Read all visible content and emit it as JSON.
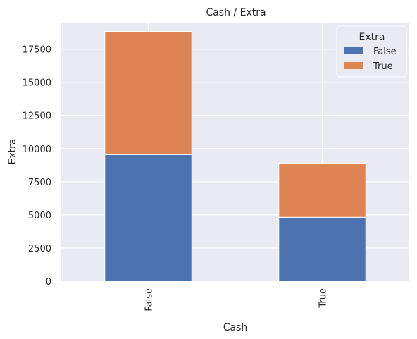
{
  "chart_data": {
    "type": "bar",
    "stacked": true,
    "title": "Cash / Extra",
    "xlabel": "Cash",
    "ylabel": "Extra",
    "categories": [
      "False",
      "True"
    ],
    "series": [
      {
        "name": "False",
        "values": [
          9550,
          4820
        ]
      },
      {
        "name": "True",
        "values": [
          9280,
          4070
        ]
      }
    ],
    "ylim": [
      0,
      19500
    ],
    "yticks": [
      0,
      2500,
      5000,
      7500,
      10000,
      12500,
      15000,
      17500
    ],
    "grid": true,
    "legend": {
      "title": "Extra",
      "position": "top-right"
    },
    "colors": {
      "series": [
        "#4c72b0",
        "#dd8452"
      ],
      "background": "#eaeaf2",
      "grid": "#ffffff"
    }
  }
}
